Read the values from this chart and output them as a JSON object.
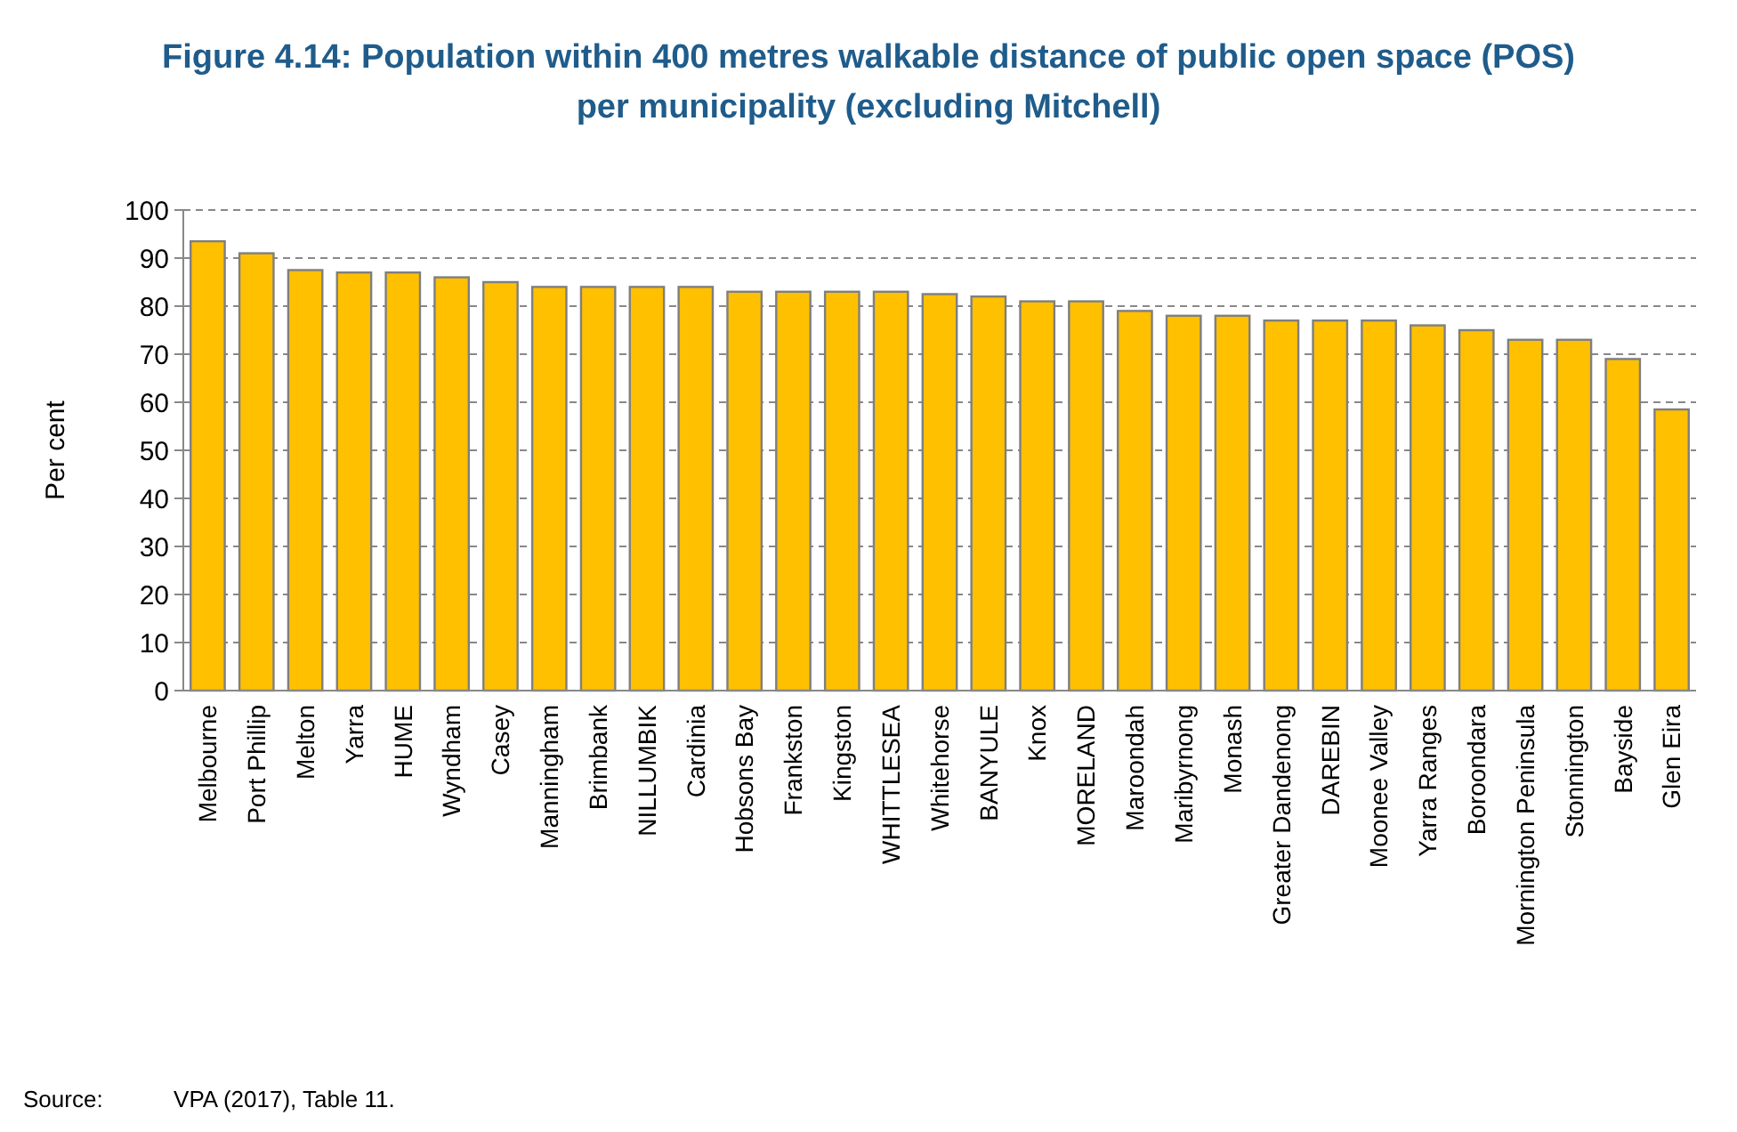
{
  "chart_data": {
    "type": "bar",
    "title": "Figure 4.14:  Population within 400 metres walkable distance of public open space (POS) per municipality (excluding Mitchell)",
    "ylabel": "Per cent",
    "categories": [
      "Melbourne",
      "Port Phillip",
      "Melton",
      "Yarra",
      "HUME",
      "Wyndham",
      "Casey",
      "Manningham",
      "Brimbank",
      "NILLUMBIK",
      "Cardinia",
      "Hobsons Bay",
      "Frankston",
      "Kingston",
      "WHITTLESEA",
      "Whitehorse",
      "BANYULE",
      "Knox",
      "MORELAND",
      "Maroondah",
      "Maribyrnong",
      "Monash",
      "Greater Dandenong",
      "DAREBIN",
      "Moonee Valley",
      "Yarra Ranges",
      "Boroondara",
      "Mornington Peninsula",
      "Stonnington",
      "Bayside",
      "Glen Eira"
    ],
    "values": [
      93.5,
      91,
      87.5,
      87,
      87,
      86,
      85,
      84,
      84,
      84,
      84,
      83,
      83,
      83,
      83,
      82.5,
      82,
      81,
      81,
      79,
      78,
      78,
      77,
      77,
      77,
      76,
      75,
      73,
      73,
      69,
      58.5
    ],
    "color": "#ffc000",
    "ylim": [
      0,
      100
    ],
    "yticks": [
      0,
      10,
      20,
      30,
      40,
      50,
      60,
      70,
      80,
      90,
      100
    ],
    "grid": "y",
    "annotations": [
      "Source:           VPA (2017), Table 11."
    ]
  }
}
